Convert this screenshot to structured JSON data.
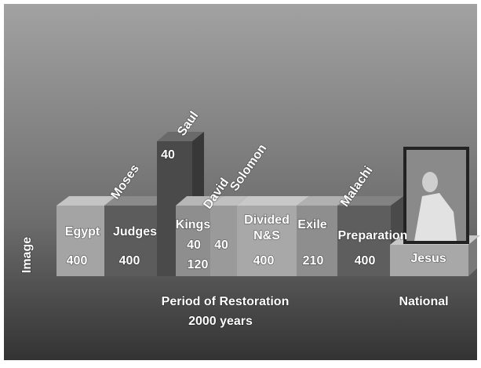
{
  "side_label": "Image",
  "blocks": [
    {
      "label": "Egypt",
      "value": 400
    },
    {
      "label": "Judges",
      "value": 400
    },
    {
      "label": "Saul",
      "value": 40
    },
    {
      "label": "Kings",
      "values": [
        40,
        120
      ]
    },
    {
      "label": "David",
      "value": 40
    },
    {
      "label": "Divided",
      "label2": "N&S",
      "value": 400
    },
    {
      "label": "Exile",
      "value": 210
    },
    {
      "label": "Preparation",
      "value": 400
    },
    {
      "label": "Jesus"
    }
  ],
  "rotated": [
    "Moses",
    "Solomon",
    "Malachi"
  ],
  "footer": {
    "line1": "Period of Restoration",
    "line2": "2000 years",
    "right": "National"
  }
}
